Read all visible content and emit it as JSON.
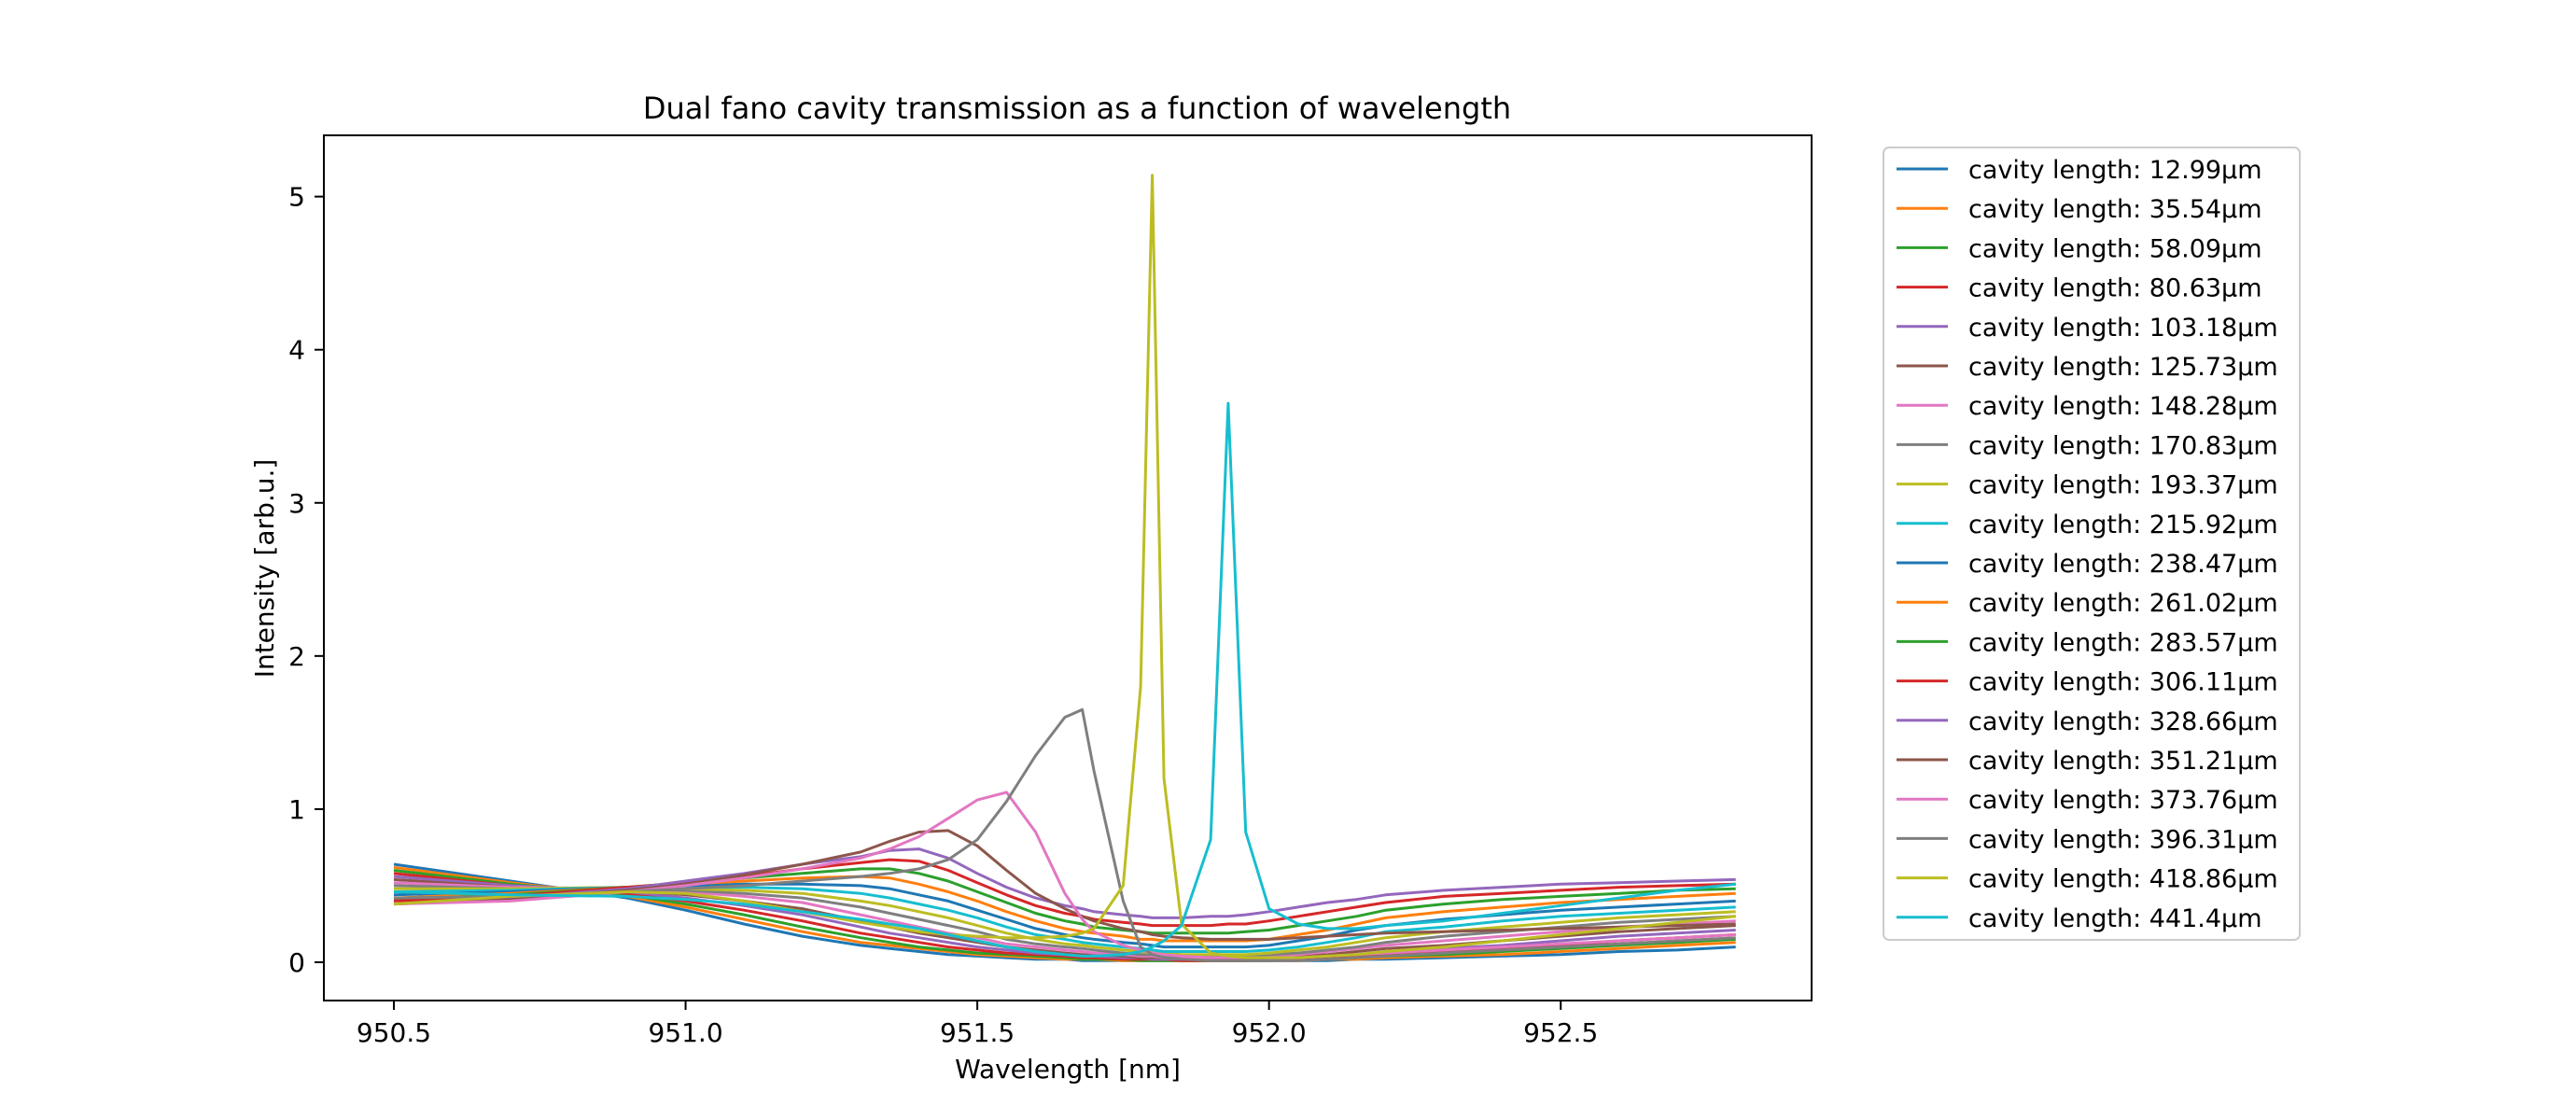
{
  "chart_data": {
    "type": "line",
    "title": "Dual fano cavity transmission as a function of wavelength",
    "xlabel": "Wavelength [nm]",
    "ylabel": "Intensity [arb.u.]",
    "xlim": [
      950.38,
      952.93
    ],
    "ylim": [
      -0.25,
      5.4
    ],
    "xticks": [
      950.5,
      951.0,
      951.5,
      952.0,
      952.5
    ],
    "xtick_labels": [
      "950.5",
      "951.0",
      "951.5",
      "952.0",
      "952.5"
    ],
    "yticks": [
      0,
      1,
      2,
      3,
      4,
      5
    ],
    "ytick_labels": [
      "0",
      "1",
      "2",
      "3",
      "4",
      "5"
    ],
    "grid": false,
    "legend_position": "outside-right",
    "x": [
      950.5,
      950.7,
      950.9,
      951.0,
      951.1,
      951.2,
      951.3,
      951.35,
      951.4,
      951.45,
      951.5,
      951.55,
      951.6,
      951.65,
      951.68,
      951.7,
      951.75,
      951.78,
      951.8,
      951.82,
      951.85,
      951.9,
      951.93,
      951.96,
      952.0,
      952.05,
      952.1,
      952.15,
      952.2,
      952.3,
      952.4,
      952.5,
      952.6,
      952.7,
      952.8
    ],
    "series": [
      {
        "name": "cavity length: 12.99µm",
        "color": "#1f77b4",
        "values": [
          0.64,
          0.53,
          0.42,
          0.34,
          0.25,
          0.17,
          0.11,
          0.09,
          0.07,
          0.05,
          0.04,
          0.03,
          0.02,
          0.02,
          0.01,
          0.01,
          0.01,
          0.01,
          0.01,
          0.01,
          0.01,
          0.01,
          0.01,
          0.01,
          0.01,
          0.01,
          0.01,
          0.02,
          0.02,
          0.03,
          0.04,
          0.05,
          0.07,
          0.08,
          0.1
        ]
      },
      {
        "name": "cavity length: 35.54µm",
        "color": "#ff7f0e",
        "values": [
          0.62,
          0.52,
          0.43,
          0.36,
          0.28,
          0.2,
          0.13,
          0.11,
          0.09,
          0.07,
          0.05,
          0.04,
          0.03,
          0.02,
          0.02,
          0.02,
          0.01,
          0.01,
          0.01,
          0.01,
          0.01,
          0.01,
          0.01,
          0.01,
          0.01,
          0.01,
          0.02,
          0.02,
          0.03,
          0.04,
          0.05,
          0.07,
          0.09,
          0.11,
          0.13
        ]
      },
      {
        "name": "cavity length: 58.09µm",
        "color": "#2ca02c",
        "values": [
          0.6,
          0.51,
          0.44,
          0.38,
          0.31,
          0.23,
          0.16,
          0.13,
          0.1,
          0.08,
          0.06,
          0.05,
          0.04,
          0.03,
          0.02,
          0.02,
          0.02,
          0.01,
          0.01,
          0.01,
          0.01,
          0.01,
          0.01,
          0.01,
          0.01,
          0.02,
          0.02,
          0.03,
          0.04,
          0.05,
          0.07,
          0.09,
          0.11,
          0.13,
          0.15
        ]
      },
      {
        "name": "cavity length: 80.63µm",
        "color": "#d62728",
        "values": [
          0.58,
          0.5,
          0.45,
          0.4,
          0.34,
          0.27,
          0.19,
          0.16,
          0.13,
          0.1,
          0.08,
          0.06,
          0.05,
          0.04,
          0.03,
          0.03,
          0.02,
          0.02,
          0.02,
          0.02,
          0.01,
          0.01,
          0.01,
          0.01,
          0.02,
          0.02,
          0.03,
          0.04,
          0.05,
          0.07,
          0.09,
          0.11,
          0.14,
          0.16,
          0.18
        ]
      },
      {
        "name": "cavity length: 103.18µm",
        "color": "#9467bd",
        "values": [
          0.56,
          0.5,
          0.46,
          0.42,
          0.37,
          0.31,
          0.23,
          0.19,
          0.16,
          0.13,
          0.1,
          0.08,
          0.06,
          0.05,
          0.04,
          0.04,
          0.03,
          0.03,
          0.02,
          0.02,
          0.02,
          0.02,
          0.02,
          0.02,
          0.02,
          0.03,
          0.04,
          0.05,
          0.07,
          0.09,
          0.11,
          0.14,
          0.17,
          0.19,
          0.21
        ]
      },
      {
        "name": "cavity length: 125.73µm",
        "color": "#8c564b",
        "values": [
          0.54,
          0.49,
          0.47,
          0.44,
          0.4,
          0.35,
          0.27,
          0.23,
          0.19,
          0.16,
          0.13,
          0.1,
          0.08,
          0.06,
          0.05,
          0.05,
          0.04,
          0.03,
          0.03,
          0.03,
          0.02,
          0.02,
          0.02,
          0.02,
          0.03,
          0.04,
          0.05,
          0.07,
          0.09,
          0.11,
          0.14,
          0.17,
          0.2,
          0.22,
          0.24
        ]
      },
      {
        "name": "cavity length: 148.28µm",
        "color": "#e377c2",
        "values": [
          0.52,
          0.49,
          0.48,
          0.46,
          0.43,
          0.39,
          0.31,
          0.27,
          0.23,
          0.19,
          0.16,
          0.12,
          0.1,
          0.08,
          0.07,
          0.06,
          0.05,
          0.04,
          0.04,
          0.03,
          0.03,
          0.03,
          0.03,
          0.03,
          0.04,
          0.05,
          0.07,
          0.09,
          0.11,
          0.14,
          0.17,
          0.2,
          0.23,
          0.25,
          0.27
        ]
      },
      {
        "name": "cavity length: 170.83µm",
        "color": "#7f7f7f",
        "values": [
          0.5,
          0.48,
          0.48,
          0.47,
          0.45,
          0.42,
          0.36,
          0.32,
          0.28,
          0.24,
          0.2,
          0.15,
          0.12,
          0.1,
          0.09,
          0.08,
          0.06,
          0.05,
          0.05,
          0.04,
          0.04,
          0.04,
          0.04,
          0.04,
          0.05,
          0.06,
          0.08,
          0.1,
          0.13,
          0.17,
          0.2,
          0.23,
          0.26,
          0.28,
          0.3
        ]
      },
      {
        "name": "cavity length: 193.37µm",
        "color": "#bcbd22",
        "values": [
          0.48,
          0.48,
          0.49,
          0.48,
          0.47,
          0.45,
          0.4,
          0.37,
          0.33,
          0.29,
          0.24,
          0.19,
          0.15,
          0.12,
          0.11,
          0.1,
          0.08,
          0.07,
          0.06,
          0.06,
          0.05,
          0.05,
          0.05,
          0.05,
          0.06,
          0.08,
          0.1,
          0.13,
          0.16,
          0.2,
          0.23,
          0.26,
          0.29,
          0.31,
          0.33
        ]
      },
      {
        "name": "cavity length: 215.92µm",
        "color": "#17becf",
        "values": [
          0.46,
          0.47,
          0.49,
          0.49,
          0.49,
          0.48,
          0.45,
          0.42,
          0.38,
          0.34,
          0.29,
          0.23,
          0.18,
          0.15,
          0.13,
          0.12,
          0.1,
          0.09,
          0.08,
          0.07,
          0.07,
          0.07,
          0.07,
          0.07,
          0.08,
          0.1,
          0.13,
          0.16,
          0.2,
          0.23,
          0.27,
          0.3,
          0.32,
          0.34,
          0.36
        ]
      },
      {
        "name": "cavity length: 238.47µm",
        "color": "#1f77b4",
        "values": [
          0.44,
          0.46,
          0.49,
          0.5,
          0.51,
          0.51,
          0.5,
          0.48,
          0.44,
          0.4,
          0.34,
          0.28,
          0.22,
          0.18,
          0.16,
          0.15,
          0.13,
          0.12,
          0.11,
          0.1,
          0.1,
          0.1,
          0.1,
          0.1,
          0.11,
          0.14,
          0.17,
          0.21,
          0.24,
          0.28,
          0.31,
          0.34,
          0.36,
          0.38,
          0.4
        ]
      },
      {
        "name": "cavity length: 261.02µm",
        "color": "#ff7f0e",
        "values": [
          0.42,
          0.45,
          0.49,
          0.51,
          0.53,
          0.55,
          0.56,
          0.55,
          0.51,
          0.46,
          0.4,
          0.33,
          0.27,
          0.22,
          0.2,
          0.19,
          0.17,
          0.15,
          0.15,
          0.14,
          0.14,
          0.14,
          0.14,
          0.14,
          0.15,
          0.18,
          0.21,
          0.25,
          0.29,
          0.33,
          0.36,
          0.39,
          0.41,
          0.43,
          0.45
        ]
      },
      {
        "name": "cavity length: 283.57µm",
        "color": "#2ca02c",
        "values": [
          0.41,
          0.44,
          0.49,
          0.52,
          0.55,
          0.58,
          0.61,
          0.61,
          0.58,
          0.53,
          0.46,
          0.39,
          0.32,
          0.27,
          0.25,
          0.23,
          0.21,
          0.2,
          0.19,
          0.19,
          0.19,
          0.19,
          0.19,
          0.2,
          0.21,
          0.24,
          0.27,
          0.3,
          0.34,
          0.38,
          0.41,
          0.43,
          0.45,
          0.47,
          0.48
        ]
      },
      {
        "name": "cavity length: 306.11µm",
        "color": "#d62728",
        "values": [
          0.4,
          0.43,
          0.49,
          0.52,
          0.56,
          0.61,
          0.65,
          0.67,
          0.66,
          0.6,
          0.52,
          0.44,
          0.37,
          0.32,
          0.3,
          0.28,
          0.26,
          0.25,
          0.24,
          0.24,
          0.24,
          0.24,
          0.25,
          0.25,
          0.27,
          0.3,
          0.33,
          0.36,
          0.39,
          0.43,
          0.45,
          0.47,
          0.49,
          0.5,
          0.51
        ]
      },
      {
        "name": "cavity length: 328.66µm",
        "color": "#9467bd",
        "values": [
          0.38,
          0.42,
          0.48,
          0.53,
          0.58,
          0.64,
          0.69,
          0.73,
          0.74,
          0.68,
          0.58,
          0.49,
          0.42,
          0.37,
          0.35,
          0.33,
          0.31,
          0.3,
          0.29,
          0.29,
          0.29,
          0.3,
          0.3,
          0.31,
          0.33,
          0.36,
          0.39,
          0.41,
          0.44,
          0.47,
          0.49,
          0.51,
          0.52,
          0.53,
          0.54
        ]
      },
      {
        "name": "cavity length: 351.21µm",
        "color": "#8c564b",
        "values": [
          0.38,
          0.41,
          0.47,
          0.51,
          0.57,
          0.64,
          0.72,
          0.79,
          0.85,
          0.86,
          0.76,
          0.6,
          0.45,
          0.35,
          0.3,
          0.27,
          0.22,
          0.2,
          0.18,
          0.17,
          0.16,
          0.15,
          0.15,
          0.15,
          0.15,
          0.16,
          0.17,
          0.18,
          0.19,
          0.2,
          0.21,
          0.22,
          0.23,
          0.24,
          0.25
        ]
      },
      {
        "name": "cavity length: 373.76µm",
        "color": "#e377c2",
        "values": [
          0.38,
          0.4,
          0.46,
          0.5,
          0.55,
          0.61,
          0.68,
          0.74,
          0.82,
          0.94,
          1.06,
          1.11,
          0.85,
          0.45,
          0.28,
          0.2,
          0.11,
          0.08,
          0.06,
          0.05,
          0.04,
          0.03,
          0.03,
          0.03,
          0.03,
          0.03,
          0.04,
          0.05,
          0.06,
          0.08,
          0.1,
          0.12,
          0.14,
          0.16,
          0.18
        ]
      },
      {
        "name": "cavity length: 396.31µm",
        "color": "#7f7f7f",
        "values": [
          0.42,
          0.43,
          0.46,
          0.48,
          0.5,
          0.53,
          0.56,
          0.58,
          0.61,
          0.67,
          0.8,
          1.05,
          1.35,
          1.6,
          1.65,
          1.25,
          0.4,
          0.1,
          0.05,
          0.03,
          0.02,
          0.01,
          0.01,
          0.01,
          0.01,
          0.01,
          0.02,
          0.03,
          0.04,
          0.06,
          0.08,
          0.1,
          0.12,
          0.14,
          0.16
        ]
      },
      {
        "name": "cavity length: 418.86µm",
        "color": "#bcbd22",
        "values": [
          0.38,
          0.43,
          0.46,
          0.45,
          0.4,
          0.33,
          0.26,
          0.23,
          0.2,
          0.18,
          0.17,
          0.16,
          0.16,
          0.17,
          0.19,
          0.22,
          0.5,
          1.8,
          5.14,
          1.2,
          0.25,
          0.06,
          0.04,
          0.03,
          0.03,
          0.03,
          0.04,
          0.05,
          0.07,
          0.1,
          0.14,
          0.18,
          0.22,
          0.26,
          0.3
        ]
      },
      {
        "name": "cavity length: 441.4µm",
        "color": "#17becf",
        "values": [
          0.46,
          0.44,
          0.43,
          0.41,
          0.38,
          0.33,
          0.28,
          0.25,
          0.22,
          0.18,
          0.14,
          0.1,
          0.07,
          0.05,
          0.04,
          0.04,
          0.05,
          0.07,
          0.1,
          0.14,
          0.24,
          0.8,
          3.65,
          0.85,
          0.35,
          0.25,
          0.22,
          0.22,
          0.24,
          0.27,
          0.32,
          0.37,
          0.42,
          0.47,
          0.51
        ]
      }
    ]
  }
}
